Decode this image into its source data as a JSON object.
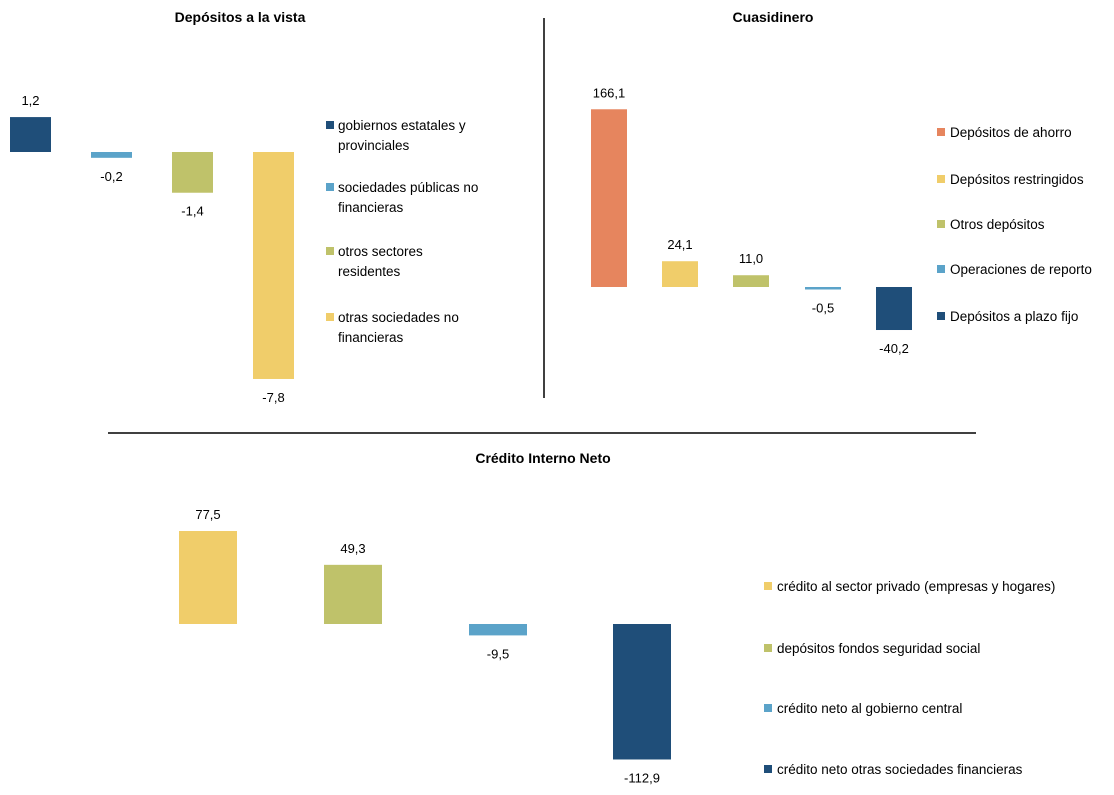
{
  "chart_data": [
    {
      "type": "bar",
      "title": "Depósitos a la vista",
      "series": [
        {
          "name": "gobiernos estatales y provinciales",
          "value": 1.2,
          "label": "1,2",
          "color": "#1f4e79"
        },
        {
          "name": "sociedades públicas no financieras",
          "value": -0.2,
          "label": "-0,2",
          "color": "#5ba3c9"
        },
        {
          "name": "otros sectores residentes",
          "value": -1.4,
          "label": "-1,4",
          "color": "#bfc26a"
        },
        {
          "name": "otras sociedades no financieras",
          "value": -7.8,
          "label": "-7,8",
          "color": "#f0cd6a"
        }
      ]
    },
    {
      "type": "bar",
      "title": "Cuasidinero",
      "series": [
        {
          "name": "Depósitos de ahorro",
          "value": 166.1,
          "label": "166,1",
          "color": "#e6855e"
        },
        {
          "name": "Depósitos restringidos",
          "value": 24.1,
          "label": "24,1",
          "color": "#f0cd6a"
        },
        {
          "name": "Otros depósitos",
          "value": 11.0,
          "label": "11,0",
          "color": "#bfc26a"
        },
        {
          "name": "Operaciones de reporto",
          "value": -0.5,
          "label": "-0,5",
          "color": "#5ba3c9"
        },
        {
          "name": "Depósitos a plazo fijo",
          "value": -40.2,
          "label": "-40,2",
          "color": "#1f4e79"
        }
      ]
    },
    {
      "type": "bar",
      "title": "Crédito Interno Neto",
      "series": [
        {
          "name": "crédito al sector privado (empresas y hogares)",
          "value": 77.5,
          "label": "77,5",
          "color": "#f0cd6a"
        },
        {
          "name": "depósitos fondos seguridad social",
          "value": 49.3,
          "label": "49,3",
          "color": "#bfc26a"
        },
        {
          "name": "crédito neto al gobierno central",
          "value": -9.5,
          "label": "-9,5",
          "color": "#5ba3c9"
        },
        {
          "name": "crédito neto otras sociedades financieras",
          "value": -112.9,
          "label": "-112,9",
          "color": "#1f4e79"
        }
      ]
    }
  ]
}
